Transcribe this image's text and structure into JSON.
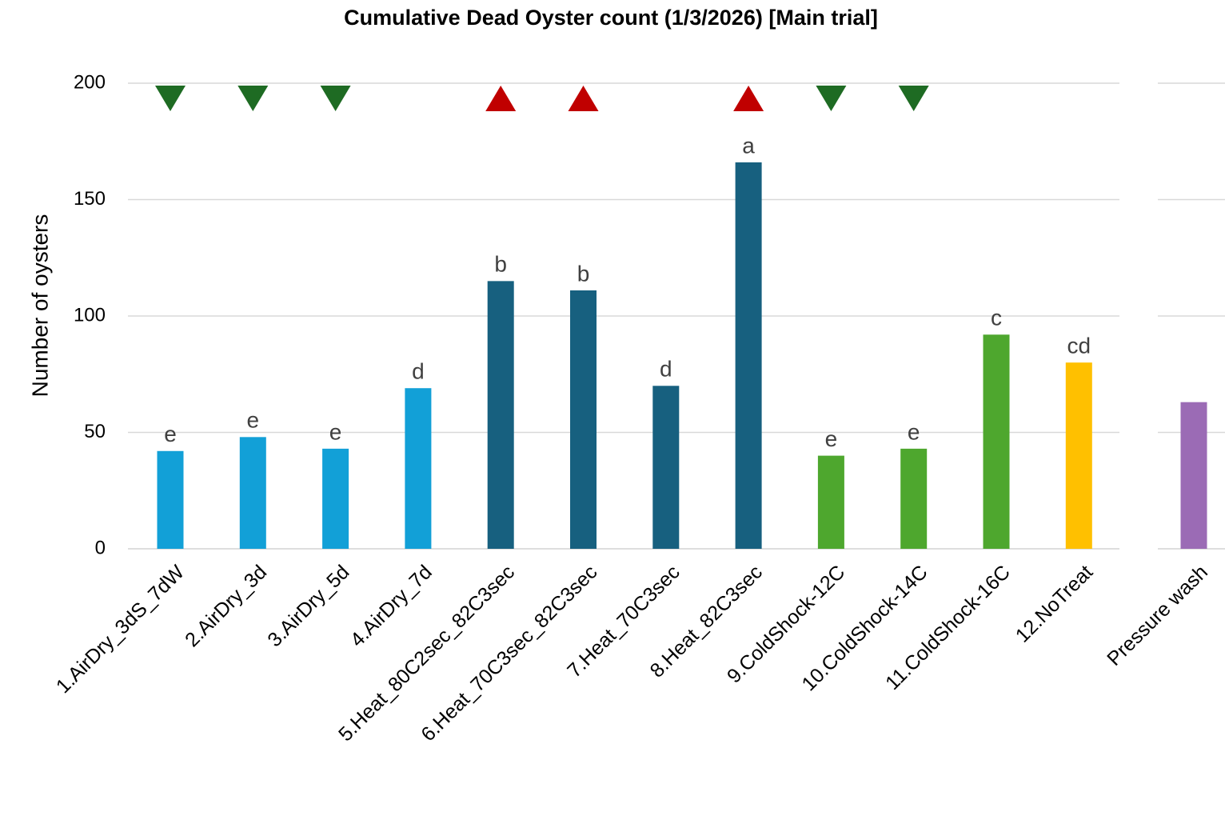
{
  "chart_data": {
    "type": "bar",
    "title": "Cumulative Dead Oyster count (1/3/2026) [Main trial]",
    "y_label": "Number of oysters",
    "categories": [
      "1.AirDry_3dS_7dW",
      "2.AirDry_3d",
      "3.AirDry_5d",
      "4.AirDry_7d",
      "5.Heat_80C2sec_82C3sec",
      "6.Heat_70C3sec_82C3sec",
      "7.Heat_70C3sec",
      "8.Heat_82C3sec",
      "9.ColdShock-12C",
      "10.ColdShock-14C",
      "11.ColdShock-16C",
      "12.NoTreat",
      "Pressure wash"
    ],
    "values": [
      42,
      48,
      43,
      69,
      115,
      111,
      70,
      166,
      40,
      43,
      92,
      80,
      63
    ],
    "colors": [
      "#12a0d7",
      "#12a0d7",
      "#12a0d7",
      "#12a0d7",
      "#17607f",
      "#17607f",
      "#17607f",
      "#17607f",
      "#4ea72e",
      "#4ea72e",
      "#4ea72e",
      "#ffc000",
      "#9b6bb5"
    ],
    "annotations": [
      "e",
      "e",
      "e",
      "d",
      "b",
      "b",
      "d",
      "a",
      "e",
      "e",
      "c",
      "cd",
      null
    ],
    "markers": [
      "down",
      "down",
      "down",
      null,
      "up",
      "up",
      null,
      "up",
      "down",
      "down",
      null,
      null,
      null
    ],
    "marker_colors": {
      "down": "#1e6b23",
      "up": "#c00000"
    },
    "ylim": [
      0,
      200
    ],
    "yticks": [
      0,
      50,
      100,
      150,
      200
    ],
    "grid": true
  }
}
